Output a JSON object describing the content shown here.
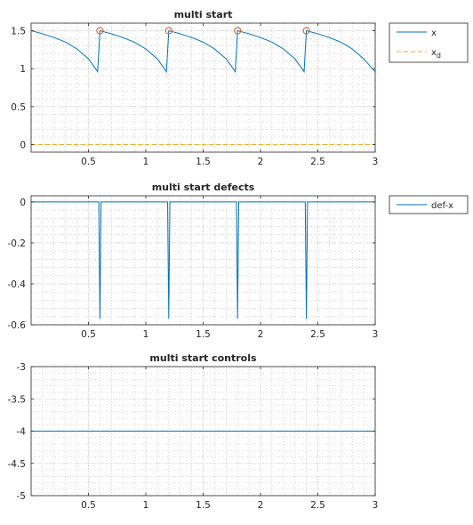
{
  "figure": {
    "colors": {
      "line": "#0072BD",
      "reference": "#EDB120",
      "marker": "#D95319",
      "axis": "#262626",
      "grid": "#BDBDBD"
    }
  },
  "chart_data": [
    {
      "type": "line",
      "title": "multi start",
      "xlim": [
        0,
        3
      ],
      "ylim": [
        -0.1,
        1.6
      ],
      "xticks": [
        0.5,
        1,
        1.5,
        2,
        2.5,
        3
      ],
      "xtick_labels": [
        "0.5",
        "1",
        "1.5",
        "2",
        "2.5",
        "3"
      ],
      "yticks": [
        0,
        0.5,
        1,
        1.5
      ],
      "ytick_labels": [
        "0",
        "0.5",
        "1",
        "1.5"
      ],
      "grid": true,
      "minor_grid": true,
      "legend": {
        "placement": "outside-right",
        "entries": [
          "x",
          "x_d"
        ]
      },
      "series": [
        {
          "name": "x",
          "style": "solid",
          "x": [
            0,
            0.1,
            0.2,
            0.3,
            0.4,
            0.5,
            0.58,
            0.6,
            0.7,
            0.8,
            0.9,
            1.0,
            1.1,
            1.18,
            1.2,
            1.3,
            1.4,
            1.5,
            1.6,
            1.7,
            1.78,
            1.8,
            1.9,
            2.0,
            2.1,
            2.2,
            2.3,
            2.38,
            2.4,
            2.5,
            2.6,
            2.7,
            2.8,
            2.9,
            3.0
          ],
          "y": [
            1.5,
            1.46,
            1.41,
            1.35,
            1.26,
            1.13,
            0.96,
            1.5,
            1.46,
            1.41,
            1.35,
            1.26,
            1.13,
            0.96,
            1.5,
            1.46,
            1.41,
            1.35,
            1.26,
            1.13,
            0.96,
            1.5,
            1.46,
            1.41,
            1.35,
            1.26,
            1.13,
            0.96,
            1.5,
            1.46,
            1.41,
            1.35,
            1.26,
            1.13,
            0.96
          ]
        },
        {
          "name": "x_d",
          "style": "dashed",
          "x": [
            0,
            3
          ],
          "y": [
            0,
            0
          ]
        }
      ],
      "markers": {
        "shape": "circle",
        "x": [
          0.6,
          1.2,
          1.8,
          2.4
        ],
        "y": [
          1.5,
          1.5,
          1.5,
          1.5
        ]
      }
    },
    {
      "type": "line",
      "title": "multi start  defects",
      "xlim": [
        0,
        3
      ],
      "ylim": [
        -0.6,
        0.03
      ],
      "xticks": [
        0.5,
        1,
        1.5,
        2,
        2.5,
        3
      ],
      "xtick_labels": [
        "0.5",
        "1",
        "1.5",
        "2",
        "2.5",
        "3"
      ],
      "yticks": [
        -0.6,
        -0.4,
        -0.2,
        0
      ],
      "ytick_labels": [
        "-0.6",
        "-0.4",
        "-0.2",
        "0"
      ],
      "grid": true,
      "minor_grid": true,
      "legend": {
        "placement": "outside-right",
        "entries": [
          "def-x"
        ]
      },
      "series": [
        {
          "name": "def-x",
          "style": "solid",
          "x": [
            0,
            0.59,
            0.6,
            0.61,
            1.19,
            1.2,
            1.21,
            1.79,
            1.8,
            1.81,
            2.39,
            2.4,
            2.41,
            3.0
          ],
          "y": [
            0,
            0,
            -0.57,
            0,
            0,
            -0.57,
            0,
            0,
            -0.57,
            0,
            0,
            -0.57,
            0,
            0
          ]
        }
      ]
    },
    {
      "type": "line",
      "title": "multi start   controls",
      "xlim": [
        0,
        3
      ],
      "ylim": [
        -5,
        -3
      ],
      "xticks": [
        0.5,
        1,
        1.5,
        2,
        2.5,
        3
      ],
      "xtick_labels": [
        "0.5",
        "1",
        "1.5",
        "2",
        "2.5",
        "3"
      ],
      "yticks": [
        -5,
        -4.5,
        -4,
        -3.5,
        -3
      ],
      "ytick_labels": [
        "-5",
        "-4.5",
        "-4",
        "-3.5",
        "-3"
      ],
      "grid": true,
      "minor_grid": true,
      "legend": null,
      "series": [
        {
          "style": "solid",
          "x": [
            0,
            3
          ],
          "y": [
            -4,
            -4
          ]
        }
      ]
    }
  ]
}
